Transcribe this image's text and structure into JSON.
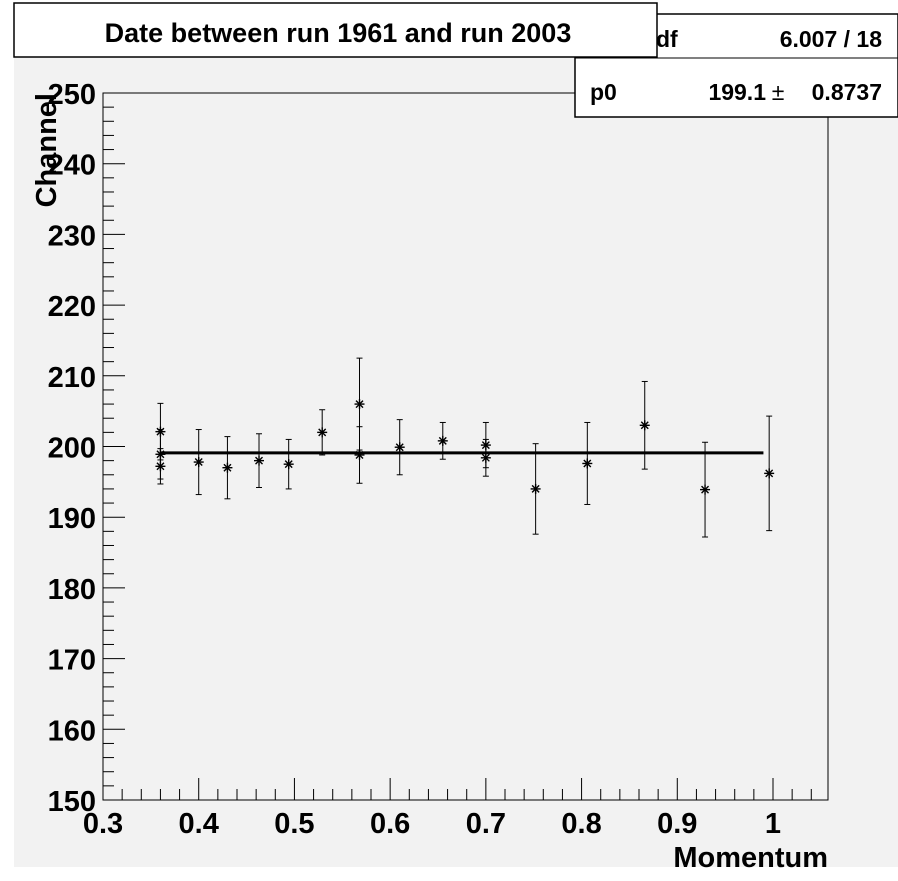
{
  "title": "Date between run 1961 and run 2003",
  "stats": {
    "row1_label": "df",
    "row1_value": "6.007 / 18",
    "row2_label": "p0",
    "row2_value": "199.1",
    "row2_pm": "±",
    "row2_error": "0.8737"
  },
  "colors": {
    "pad_background": "#f2f2f2",
    "frame": "#000000",
    "fit_line": "#000000",
    "markers": "#000000"
  },
  "chart_data": {
    "type": "scatter",
    "title": "Date between run 1961 and run 2003",
    "xlabel": "Momentum",
    "ylabel": "Channel",
    "xlim": [
      0.3,
      1.05
    ],
    "ylim": [
      150,
      250
    ],
    "x_major_ticks": [
      0.3,
      0.4,
      0.5,
      0.6,
      0.7,
      0.8,
      0.9,
      1.0
    ],
    "x_tick_labels": [
      "0.3",
      "0.4",
      "0.5",
      "0.6",
      "0.7",
      "0.8",
      "0.9",
      "1"
    ],
    "y_major_ticks": [
      150,
      160,
      170,
      180,
      190,
      200,
      210,
      220,
      230,
      240,
      250
    ],
    "y_tick_labels": [
      "150",
      "160",
      "170",
      "180",
      "190",
      "200",
      "210",
      "220",
      "230",
      "240",
      "250"
    ],
    "grid": false,
    "marker": "asterisk",
    "points": [
      {
        "x": 0.36,
        "y": 202.1,
        "err": 4.0
      },
      {
        "x": 0.36,
        "y": 198.9,
        "err": 3.5
      },
      {
        "x": 0.36,
        "y": 197.2,
        "err": 2.5
      },
      {
        "x": 0.4,
        "y": 197.8,
        "err": 4.6
      },
      {
        "x": 0.43,
        "y": 197.0,
        "err": 4.4
      },
      {
        "x": 0.463,
        "y": 198.0,
        "err": 3.8
      },
      {
        "x": 0.494,
        "y": 197.5,
        "err": 3.5
      },
      {
        "x": 0.529,
        "y": 202.0,
        "err": 3.2
      },
      {
        "x": 0.568,
        "y": 206.0,
        "err": 6.5
      },
      {
        "x": 0.568,
        "y": 198.8,
        "err": 4.0
      },
      {
        "x": 0.61,
        "y": 199.9,
        "err": 3.9
      },
      {
        "x": 0.655,
        "y": 200.8,
        "err": 2.6
      },
      {
        "x": 0.7,
        "y": 200.2,
        "err": 3.2
      },
      {
        "x": 0.7,
        "y": 198.4,
        "err": 2.6
      },
      {
        "x": 0.752,
        "y": 194.0,
        "err": 6.4
      },
      {
        "x": 0.806,
        "y": 197.6,
        "err": 5.8
      },
      {
        "x": 0.866,
        "y": 203.0,
        "err": 6.2
      },
      {
        "x": 0.929,
        "y": 193.9,
        "err": 6.7
      },
      {
        "x": 0.996,
        "y": 196.2,
        "err": 8.1
      }
    ],
    "fit": {
      "name": "p0",
      "value": 199.1,
      "error": 0.8737,
      "x_range": [
        0.36,
        0.99
      ]
    }
  }
}
